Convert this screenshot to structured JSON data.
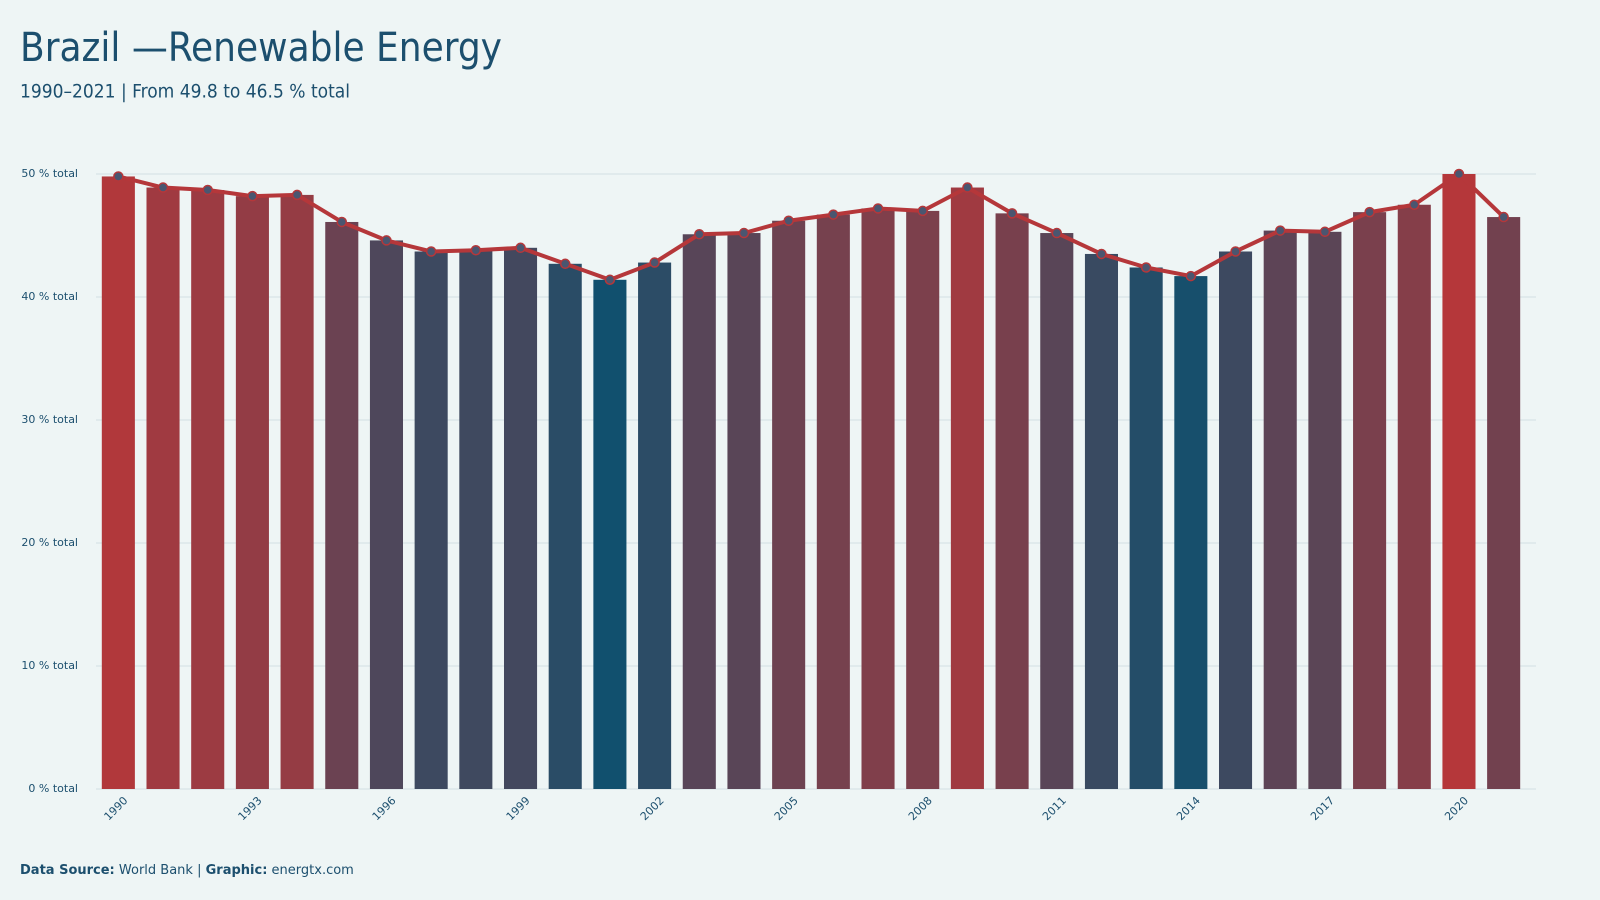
{
  "chart_data": {
    "type": "bar",
    "title": "Brazil —Renewable Energy",
    "subtitle": "1990–2021 | From 49.8 to 46.5 % total",
    "source_label": "Data Source:",
    "source": "World Bank",
    "graphic_label": "Graphic:",
    "graphic": "energtx.com",
    "categories": [
      "1990",
      null,
      null,
      "1993",
      null,
      null,
      "1996",
      null,
      null,
      "1999",
      null,
      null,
      "2002",
      null,
      null,
      "2005",
      null,
      null,
      "2008",
      null,
      null,
      "2011",
      null,
      null,
      "2014",
      null,
      null,
      "2017",
      null,
      null,
      "2020",
      null
    ],
    "values": [
      49.8,
      48.9,
      48.7,
      48.2,
      48.3,
      46.1,
      44.6,
      43.7,
      43.8,
      44.0,
      42.7,
      41.4,
      42.8,
      45.1,
      45.2,
      46.2,
      46.7,
      47.2,
      47.0,
      48.9,
      46.8,
      45.2,
      43.5,
      42.4,
      41.7,
      43.7,
      45.4,
      45.3,
      46.9,
      47.5,
      50.0,
      46.5
    ],
    "color_scale": [
      "#11506e",
      "#b5373a"
    ],
    "line": true,
    "line_color": "#b5373a",
    "marker_color": "#4a5670",
    "ylim": [
      0,
      50
    ],
    "yticks": [
      {
        "value": 0,
        "label": "0 % total"
      },
      {
        "value": 10,
        "label": "10 % total"
      },
      {
        "value": 20,
        "label": "20 % total"
      },
      {
        "value": 30,
        "label": "30 % total"
      },
      {
        "value": 40,
        "label": "40 % total"
      },
      {
        "value": 50,
        "label": "50 % total"
      }
    ],
    "grid": true
  }
}
